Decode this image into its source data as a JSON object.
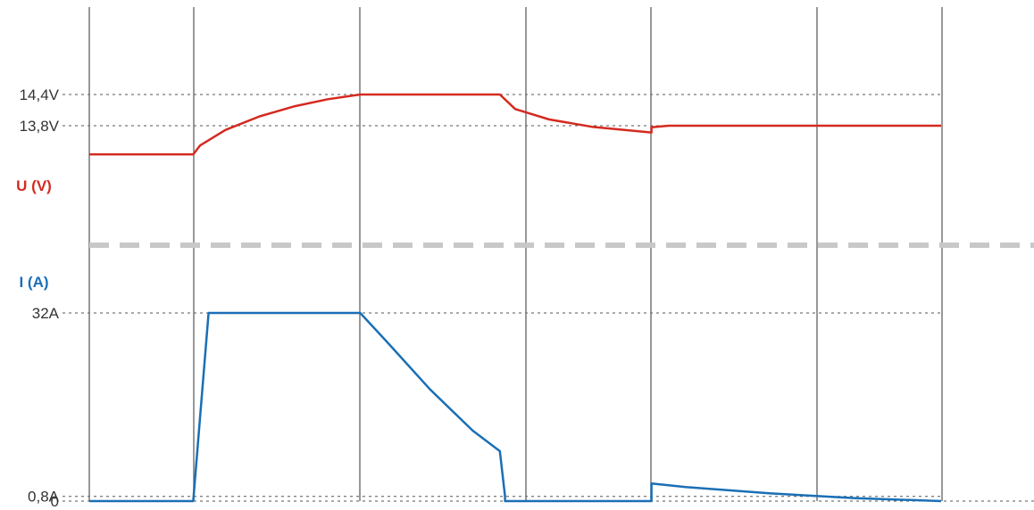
{
  "chart_data": [
    {
      "type": "line",
      "ylabel": "U (V)",
      "color": "#d42a20",
      "y_ticks": [
        {
          "label": "14,4V",
          "value": 14.4
        },
        {
          "label": "13,8V",
          "value": 13.8
        }
      ],
      "ylim": [
        12.0,
        15.4
      ],
      "xlim": [
        0,
        1
      ],
      "series": [
        {
          "x": [
            0,
            0.122,
            0.13,
            0.16,
            0.2,
            0.24,
            0.28,
            0.318,
            0.482,
            0.5,
            0.54,
            0.59,
            0.66,
            0.66,
            0.68,
            1.0
          ],
          "y": [
            13.25,
            13.25,
            13.42,
            13.72,
            13.98,
            14.17,
            14.31,
            14.4,
            14.4,
            14.12,
            13.92,
            13.78,
            13.67,
            13.77,
            13.8,
            13.8
          ]
        }
      ]
    },
    {
      "type": "line",
      "ylabel": "I (A)",
      "color": "#1a6fb5",
      "y_ticks": [
        {
          "label": "32A",
          "value": 32
        },
        {
          "label": "0,8A",
          "value": 0.8
        },
        {
          "label": "0",
          "value": 0
        }
      ],
      "ylim": [
        0,
        35
      ],
      "xlim": [
        0,
        1
      ],
      "series": [
        {
          "x": [
            0,
            0.122,
            0.14,
            0.318,
            0.35,
            0.4,
            0.45,
            0.482,
            0.488,
            0.488,
            0.66,
            0.66,
            1.0
          ],
          "y": [
            0,
            0,
            32,
            32,
            27,
            19,
            12,
            8.5,
            0.8,
            0,
            0,
            3,
            0
          ],
          "x_hold": [
            0.66,
            0.7,
            0.8,
            0.9,
            1.0
          ],
          "y_hold": [
            3,
            2.4,
            1.3,
            0.5,
            0
          ]
        }
      ]
    }
  ]
}
